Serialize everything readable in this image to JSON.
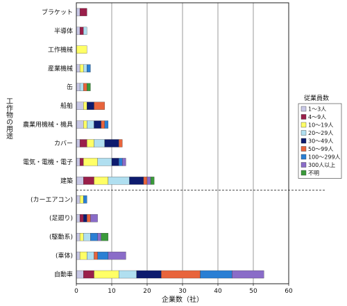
{
  "chart_data": {
    "type": "bar",
    "orientation": "horizontal",
    "stacked": true,
    "xlabel": "企業数（社）",
    "ylabel": "工作物の用途",
    "xlim": [
      0,
      60
    ],
    "xticks": [
      "0",
      "10",
      "20",
      "30",
      "40",
      "50",
      "60"
    ],
    "grid": true,
    "legend": {
      "title": "従業員数",
      "position": "right",
      "items": [
        {
          "label": "1～3人",
          "color": "#c8c8e6"
        },
        {
          "label": "4～9人",
          "color": "#9a1f4a"
        },
        {
          "label": "10～19人",
          "color": "#ffff66"
        },
        {
          "label": "20～29人",
          "color": "#b0dff0"
        },
        {
          "label": "30～49人",
          "color": "#0d1b6e"
        },
        {
          "label": "50～99人",
          "color": "#e8643c"
        },
        {
          "label": "100～299人",
          "color": "#2a7fd4"
        },
        {
          "label": "300人以上",
          "color": "#8a6cc8"
        },
        {
          "label": "不明",
          "color": "#3a9a3a"
        }
      ]
    },
    "categories": [
      {
        "label": "ブラケット",
        "segments": [
          1,
          2,
          0,
          0,
          0,
          0,
          0,
          0,
          0
        ]
      },
      {
        "label": "半導体",
        "segments": [
          1,
          1,
          0,
          1,
          0,
          0,
          0,
          0,
          0
        ]
      },
      {
        "label": "工作機械",
        "segments": [
          0,
          0,
          3,
          0,
          0,
          0,
          0,
          0,
          0
        ]
      },
      {
        "label": "産業機械",
        "segments": [
          1,
          0,
          1,
          1,
          0,
          0,
          1,
          0,
          0
        ]
      },
      {
        "label": "缶",
        "segments": [
          1,
          0,
          0,
          1,
          0,
          1,
          0,
          0,
          1
        ]
      },
      {
        "label": "船舶",
        "segments": [
          2,
          0,
          1,
          0,
          2,
          3,
          0,
          0,
          0
        ]
      },
      {
        "label": "農業用機械・機具",
        "segments": [
          2,
          0,
          1,
          2,
          2,
          1,
          1,
          0,
          0
        ]
      },
      {
        "label": "カバー",
        "segments": [
          1,
          2,
          2,
          3,
          4,
          1,
          0,
          0,
          0
        ]
      },
      {
        "label": "電気・電機・電子",
        "segments": [
          1,
          1,
          4,
          4,
          2,
          0,
          1,
          1,
          0
        ]
      },
      {
        "label": "建築",
        "segments": [
          2,
          3,
          4,
          6,
          4,
          1,
          0,
          1,
          1
        ]
      },
      {
        "label": "(カーエアコン)",
        "segments": [
          1,
          0,
          1,
          0,
          0,
          0,
          1,
          0,
          0
        ]
      },
      {
        "label": "(足廻り)",
        "segments": [
          1,
          1,
          0,
          0,
          1,
          1,
          0,
          2,
          0
        ]
      },
      {
        "label": "(駆動系)",
        "segments": [
          1,
          0,
          1,
          2,
          0,
          0,
          2,
          1,
          2
        ]
      },
      {
        "label": "(車体)",
        "segments": [
          1,
          0,
          2,
          2,
          0,
          1,
          3,
          5,
          0
        ]
      },
      {
        "label": "自動車",
        "segments": [
          2,
          3,
          7,
          5,
          7,
          11,
          9,
          9,
          0
        ]
      }
    ],
    "divider_after": "建築"
  }
}
